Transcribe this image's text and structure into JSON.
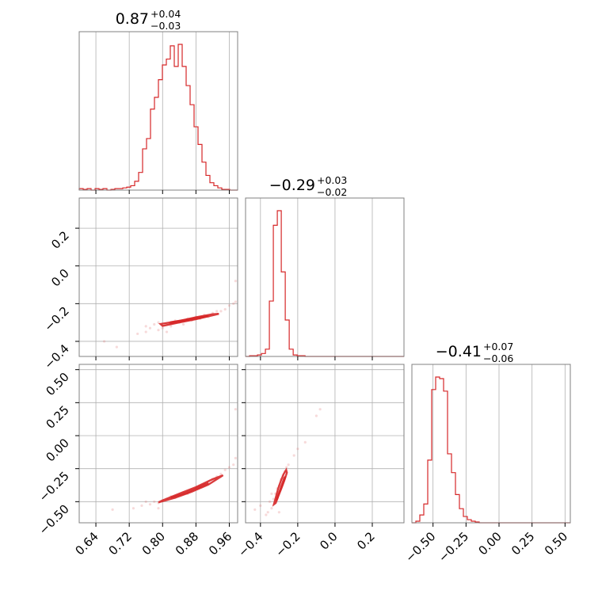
{
  "chart_data": {
    "type": "corner",
    "color": "#d62728",
    "parameters": [
      {
        "median": 0.87,
        "err_plus": "+0.04",
        "err_minus": "−0.03",
        "title_main": "0.87",
        "range": [
          0.6,
          0.98
        ],
        "ticks": [
          0.64,
          0.72,
          0.8,
          0.88,
          0.96
        ],
        "tick_labels": [
          "0.64",
          "0.72",
          "0.80",
          "0.88",
          "0.96"
        ],
        "hist": {
          "edges_start": 0.6,
          "bin_width": 0.0095,
          "counts": [
            0.01,
            0.005,
            0.01,
            0.0,
            0.01,
            0.005,
            0.01,
            0.0,
            0.005,
            0.01,
            0.01,
            0.015,
            0.02,
            0.03,
            0.06,
            0.12,
            0.28,
            0.35,
            0.55,
            0.63,
            0.75,
            0.85,
            0.89,
            0.98,
            0.84,
            0.99,
            0.84,
            0.71,
            0.58,
            0.43,
            0.31,
            0.19,
            0.1,
            0.05,
            0.03,
            0.015,
            0.005,
            0.005,
            0.0,
            0.0
          ]
        }
      },
      {
        "median": -0.29,
        "err_plus": "+0.03",
        "err_minus": "−0.02",
        "title_main": "−0.29",
        "range": [
          -0.48,
          0.37
        ],
        "ticks": [
          -0.4,
          -0.2,
          0.0,
          0.2
        ],
        "tick_labels": [
          "−0.4",
          "−0.2",
          "0.0",
          "0.2"
        ],
        "hist": {
          "edges_start": -0.48,
          "bin_width": 0.0213,
          "counts": [
            0.0,
            0.005,
            0.005,
            0.01,
            0.02,
            0.05,
            0.38,
            0.9,
            1.0,
            0.58,
            0.25,
            0.05,
            0.01,
            0.005,
            0.005,
            0.0,
            0.0,
            0.0,
            0.0,
            0.0,
            0.0,
            0.0,
            0.0,
            0.0,
            0.0,
            0.0,
            0.0,
            0.0,
            0.0,
            0.0,
            0.0,
            0.0,
            0.0,
            0.0,
            0.0,
            0.0,
            0.0,
            0.0,
            0.0,
            0.0
          ]
        }
      },
      {
        "median": -0.41,
        "err_plus": "+0.07",
        "err_minus": "−0.06",
        "title_main": "−0.41",
        "range": [
          -0.66,
          0.54
        ],
        "ticks": [
          -0.5,
          -0.25,
          0.0,
          0.25,
          0.5
        ],
        "tick_labels": [
          "−0.50",
          "−0.25",
          "0.00",
          "0.25",
          "0.50"
        ],
        "hist": {
          "edges_start": -0.66,
          "bin_width": 0.03,
          "counts": [
            0.0,
            0.01,
            0.05,
            0.12,
            0.4,
            0.85,
            0.93,
            0.92,
            0.84,
            0.44,
            0.32,
            0.18,
            0.09,
            0.04,
            0.02,
            0.01,
            0.005,
            0.0,
            0.0,
            0.0,
            0.0,
            0.0,
            0.0,
            0.0,
            0.0,
            0.0,
            0.0,
            0.0,
            0.0,
            0.0,
            0.0,
            0.0,
            0.0,
            0.0,
            0.0,
            0.0,
            0.0,
            0.0,
            0.0,
            0.0
          ]
        }
      }
    ],
    "y_tick_labels": {
      "row1": [
        "0.2",
        "0.0",
        "−0.2",
        "−0.4"
      ],
      "row2": [
        "0.50",
        "0.25",
        "0.00",
        "−0.25",
        "−0.50"
      ]
    },
    "pairs": [
      {
        "x_param": 0,
        "y_param": 1,
        "contours": [
          [
            [
              0.795,
              -0.308
            ],
            [
              0.84,
              -0.292
            ],
            [
              0.88,
              -0.272
            ],
            [
              0.92,
              -0.256
            ],
            [
              0.935,
              -0.254
            ],
            [
              0.92,
              -0.262
            ],
            [
              0.88,
              -0.282
            ],
            [
              0.84,
              -0.3
            ],
            [
              0.8,
              -0.318
            ],
            [
              0.795,
              -0.308
            ]
          ],
          [
            [
              0.82,
              -0.298
            ],
            [
              0.86,
              -0.284
            ],
            [
              0.9,
              -0.268
            ],
            [
              0.91,
              -0.266
            ],
            [
              0.89,
              -0.276
            ],
            [
              0.85,
              -0.292
            ],
            [
              0.82,
              -0.305
            ],
            [
              0.82,
              -0.298
            ]
          ]
        ],
        "scatter": [
          [
            0.66,
            -0.4
          ],
          [
            0.69,
            -0.43
          ],
          [
            0.74,
            -0.36
          ],
          [
            0.76,
            -0.32
          ],
          [
            0.77,
            -0.33
          ],
          [
            0.78,
            -0.31
          ],
          [
            0.79,
            -0.34
          ],
          [
            0.8,
            -0.33
          ],
          [
            0.81,
            -0.31
          ],
          [
            0.82,
            -0.32
          ],
          [
            0.83,
            -0.29
          ],
          [
            0.84,
            -0.3
          ],
          [
            0.85,
            -0.31
          ],
          [
            0.86,
            -0.28
          ],
          [
            0.87,
            -0.29
          ],
          [
            0.88,
            -0.27
          ],
          [
            0.89,
            -0.28
          ],
          [
            0.9,
            -0.26
          ],
          [
            0.91,
            -0.27
          ],
          [
            0.92,
            -0.25
          ],
          [
            0.93,
            -0.24
          ],
          [
            0.94,
            -0.24
          ],
          [
            0.95,
            -0.23
          ],
          [
            0.96,
            -0.21
          ],
          [
            0.97,
            -0.2
          ],
          [
            0.975,
            -0.19
          ],
          [
            0.975,
            -0.08
          ],
          [
            0.79,
            -0.3
          ],
          [
            0.81,
            -0.35
          ],
          [
            0.76,
            -0.35
          ]
        ]
      },
      {
        "x_param": 0,
        "y_param": 2,
        "contours": [
          [
            [
              0.79,
              -0.505
            ],
            [
              0.83,
              -0.47
            ],
            [
              0.87,
              -0.425
            ],
            [
              0.91,
              -0.37
            ],
            [
              0.94,
              -0.31
            ],
            [
              0.945,
              -0.3
            ],
            [
              0.92,
              -0.33
            ],
            [
              0.88,
              -0.39
            ],
            [
              0.84,
              -0.44
            ],
            [
              0.8,
              -0.49
            ],
            [
              0.79,
              -0.505
            ]
          ],
          [
            [
              0.82,
              -0.47
            ],
            [
              0.86,
              -0.43
            ],
            [
              0.9,
              -0.37
            ],
            [
              0.91,
              -0.36
            ],
            [
              0.89,
              -0.39
            ],
            [
              0.85,
              -0.44
            ],
            [
              0.82,
              -0.47
            ]
          ]
        ],
        "scatter": [
          [
            0.68,
            -0.56
          ],
          [
            0.73,
            -0.55
          ],
          [
            0.75,
            -0.53
          ],
          [
            0.77,
            -0.52
          ],
          [
            0.78,
            -0.5
          ],
          [
            0.79,
            -0.51
          ],
          [
            0.8,
            -0.49
          ],
          [
            0.81,
            -0.48
          ],
          [
            0.82,
            -0.46
          ],
          [
            0.83,
            -0.47
          ],
          [
            0.84,
            -0.45
          ],
          [
            0.85,
            -0.43
          ],
          [
            0.86,
            -0.44
          ],
          [
            0.87,
            -0.41
          ],
          [
            0.88,
            -0.4
          ],
          [
            0.89,
            -0.39
          ],
          [
            0.9,
            -0.37
          ],
          [
            0.91,
            -0.35
          ],
          [
            0.92,
            -0.33
          ],
          [
            0.93,
            -0.31
          ],
          [
            0.94,
            -0.29
          ],
          [
            0.95,
            -0.26
          ],
          [
            0.96,
            -0.24
          ],
          [
            0.97,
            -0.22
          ],
          [
            0.975,
            -0.17
          ],
          [
            0.975,
            0.2
          ],
          [
            0.79,
            -0.55
          ],
          [
            0.76,
            -0.5
          ]
        ]
      },
      {
        "x_param": 1,
        "y_param": 2,
        "contours": [
          [
            [
              -0.328,
              -0.52
            ],
            [
              -0.318,
              -0.47
            ],
            [
              -0.305,
              -0.4
            ],
            [
              -0.29,
              -0.34
            ],
            [
              -0.275,
              -0.29
            ],
            [
              -0.262,
              -0.26
            ],
            [
              -0.258,
              -0.28
            ],
            [
              -0.272,
              -0.34
            ],
            [
              -0.288,
              -0.4
            ],
            [
              -0.305,
              -0.46
            ],
            [
              -0.318,
              -0.51
            ],
            [
              -0.328,
              -0.52
            ]
          ],
          [
            [
              -0.315,
              -0.49
            ],
            [
              -0.3,
              -0.43
            ],
            [
              -0.285,
              -0.37
            ],
            [
              -0.272,
              -0.32
            ],
            [
              -0.266,
              -0.31
            ],
            [
              -0.28,
              -0.36
            ],
            [
              -0.296,
              -0.42
            ],
            [
              -0.31,
              -0.48
            ],
            [
              -0.315,
              -0.49
            ]
          ]
        ],
        "scatter": [
          [
            -0.43,
            -0.56
          ],
          [
            -0.4,
            -0.53
          ],
          [
            -0.36,
            -0.58
          ],
          [
            -0.35,
            -0.5
          ],
          [
            -0.34,
            -0.55
          ],
          [
            -0.33,
            -0.48
          ],
          [
            -0.32,
            -0.44
          ],
          [
            -0.31,
            -0.4
          ],
          [
            -0.3,
            -0.38
          ],
          [
            -0.29,
            -0.33
          ],
          [
            -0.28,
            -0.3
          ],
          [
            -0.27,
            -0.27
          ],
          [
            -0.26,
            -0.24
          ],
          [
            -0.25,
            -0.22
          ],
          [
            -0.22,
            -0.15
          ],
          [
            -0.2,
            -0.1
          ],
          [
            -0.16,
            -0.05
          ],
          [
            -0.1,
            0.15
          ],
          [
            -0.08,
            0.2
          ],
          [
            -0.3,
            -0.58
          ],
          [
            -0.34,
            -0.44
          ],
          [
            -0.37,
            -0.6
          ]
        ]
      }
    ]
  }
}
